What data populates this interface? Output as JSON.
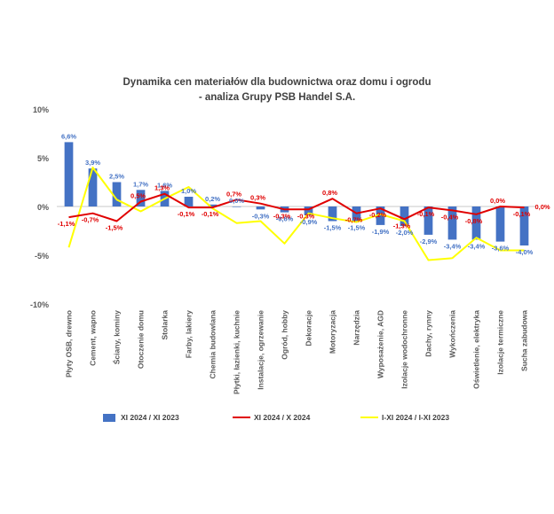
{
  "chart_data": {
    "type": "bar",
    "title": "Dynamika cen materiałów dla budownictwa oraz domu i ogrodu",
    "subtitle": "- analiza Grupy PSB Handel S.A.",
    "xlabel": "",
    "ylabel": "",
    "ylim": [
      -10,
      10
    ],
    "y_ticks": [
      10,
      5,
      0,
      -5,
      -10
    ],
    "y_tick_labels": [
      "10%",
      "5%",
      "0%",
      "-5%",
      "-10%"
    ],
    "grid": false,
    "legend_position": "bottom",
    "categories": [
      "Płyty OSB, drewno",
      "Cement, wapno",
      "Ściany, kominy",
      "Otoczenie domu",
      "Stolarka",
      "Farby, lakiery",
      "Chemia budowlana",
      "Płytki, łazienki, kuchnie",
      "Instalacje, ogrzewanie",
      "Ogród, hobby",
      "Dekoracje",
      "Motoryzacja",
      "Narzędzia",
      "Wyposażenie, AGD",
      "Izolacje wodochronne",
      "Dachy, rynny",
      "Wykończenia",
      "Oświetlenie, elektryka",
      "Izolacje termiczne",
      "Sucha zabudowa"
    ],
    "series": [
      {
        "name": "XI 2024 / XI 2023",
        "type": "bar",
        "color": "#4472C4",
        "values": [
          6.6,
          3.9,
          2.5,
          1.7,
          1.6,
          1.0,
          0.2,
          0.0,
          -0.3,
          -0.6,
          -0.9,
          -1.5,
          -1.5,
          -1.9,
          -2.0,
          -2.9,
          -3.4,
          -3.4,
          -3.6,
          -4.0
        ],
        "labels": [
          "6,6%",
          "3,9%",
          "2,5%",
          "1,7%",
          "1,6%",
          "1,0%",
          "0,2%",
          "0,0%",
          "-0,3%",
          "-0,6%",
          "-0,9%",
          "-1,5%",
          "-1,5%",
          "-1,9%",
          "-2,0%",
          "-2,9%",
          "-3,4%",
          "-3,4%",
          "-3,6%",
          "-4,0%"
        ]
      },
      {
        "name": "XI 2024 / X 2024",
        "type": "line",
        "color": "#E00000",
        "values": [
          -1.1,
          -0.7,
          -1.5,
          0.5,
          1.3,
          -0.1,
          -0.1,
          0.7,
          0.3,
          -0.3,
          -0.3,
          0.8,
          -0.7,
          -0.2,
          -1.3,
          -0.1,
          -0.4,
          -0.8,
          0.0,
          -0.1
        ],
        "labels": [
          "-1,1%",
          "-0,7%",
          "-1,5%",
          "0,5%",
          "1,3%",
          "-0,1%",
          "-0,1%",
          "0,7%",
          "0,3%",
          "-0,3%",
          "-0,3%",
          "0,8%",
          "-0,7%",
          "-0,2%",
          "-1,3%",
          "-0,1%",
          "-0,4%",
          "-0,8%",
          "0,0%",
          "-0,1%"
        ]
      },
      {
        "name": "I-XI 2024 / I-XI 2023",
        "type": "line",
        "color": "#FFFF00",
        "values": [
          -4.2,
          4.0,
          0.7,
          -0.5,
          0.8,
          2.0,
          -0.2,
          -1.7,
          -1.5,
          -3.8,
          -0.7,
          -1.2,
          -1.6,
          -0.8,
          -1.5,
          -5.5,
          -5.3,
          -3.2,
          -4.5,
          -4.5
        ],
        "labels": [
          "",
          "",
          "",
          "",
          "",
          "",
          "",
          "",
          "",
          "",
          "",
          "",
          "",
          "",
          "",
          "",
          "",
          "",
          "",
          ""
        ]
      }
    ],
    "annotation_text": "0,0%",
    "annotation_after_last_label": "0,0%"
  }
}
